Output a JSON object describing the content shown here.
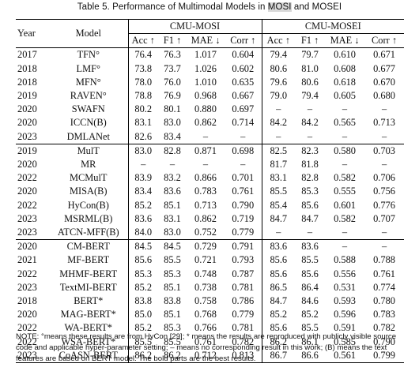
{
  "caption": {
    "prefix": "Table 5.  Performance of Multimodal Models in ",
    "mosi": "MOSI",
    "suffix": " and MOSEI"
  },
  "header": {
    "year": "Year",
    "model": "Model",
    "group1": "CMU-MOSI",
    "group2": "CMU-MOSEI",
    "metrics": [
      "Acc ↑",
      "F1 ↑",
      "MAE ↓",
      "Corr ↑",
      "Acc ↑",
      "F1 ↑",
      "MAE ↓",
      "Corr ↑"
    ]
  },
  "groups": [
    {
      "rows": [
        {
          "year": "2017",
          "model": "TFN°",
          "v": [
            "76.4",
            "76.3",
            "1.017",
            "0.604",
            "79.4",
            "79.7",
            "0.610",
            "0.671"
          ]
        },
        {
          "year": "2018",
          "model": "LMF°",
          "v": [
            "73.8",
            "73.7",
            "1.026",
            "0.602",
            "80.6",
            "81.0",
            "0.608",
            "0.677"
          ]
        },
        {
          "year": "2018",
          "model": "MFN°",
          "v": [
            "78.0",
            "76.0",
            "1.010",
            "0.635",
            "79.6",
            "80.6",
            "0.618",
            "0.670"
          ]
        },
        {
          "year": "2019",
          "model": "RAVEN°",
          "v": [
            "78.8",
            "76.9",
            "0.968",
            "0.667",
            "79.0",
            "79.4",
            "0.605",
            "0.680"
          ]
        },
        {
          "year": "2020",
          "model": "SWAFN",
          "v": [
            "80.2",
            "80.1",
            "0.880",
            "0.697",
            "–",
            "–",
            "–",
            "–"
          ]
        },
        {
          "year": "2020",
          "model": "ICCN(B)",
          "v": [
            "83.1",
            "83.0",
            "0.862",
            "0.714",
            "84.2",
            "84.2",
            "0.565",
            "0.713"
          ]
        },
        {
          "year": "2023",
          "model": "DMLANet",
          "v": [
            "82.6",
            "83.4",
            "–",
            "–",
            "–",
            "–",
            "–",
            "–"
          ]
        }
      ]
    },
    {
      "rows": [
        {
          "year": "2019",
          "model": "MulT",
          "v": [
            "83.0",
            "82.8",
            "0.871",
            "0.698",
            "82.5",
            "82.3",
            "0.580",
            "0.703"
          ]
        },
        {
          "year": "2020",
          "model": "MR",
          "v": [
            "–",
            "–",
            "–",
            "–",
            "81.7",
            "81.8",
            "–",
            "–"
          ]
        },
        {
          "year": "2022",
          "model": "MCMulT",
          "v": [
            "83.9",
            "83.2",
            "0.866",
            "0.701",
            "83.1",
            "82.8",
            "0.582",
            "0.706"
          ]
        },
        {
          "year": "2020",
          "model": "MISA(B)",
          "v": [
            "83.4",
            "83.6",
            "0.783",
            "0.761",
            "85.5",
            "85.3",
            "0.555",
            "0.756"
          ]
        },
        {
          "year": "2022",
          "model": "HyCon(B)",
          "v": [
            "85.2",
            "85.1",
            "0.713",
            "0.790",
            "85.4",
            "85.6",
            "0.601",
            "0.776"
          ]
        },
        {
          "year": "2023",
          "model": "MSRML(B)",
          "v": [
            "83.6",
            "83.1",
            "0.862",
            "0.719",
            "84.7",
            "84.7",
            "0.582",
            "0.707"
          ]
        },
        {
          "year": "2023",
          "model": "ATCN-MFF(B)",
          "v": [
            "84.0",
            "83.0",
            "0.752",
            "0.779",
            "–",
            "–",
            "–",
            "–"
          ]
        }
      ]
    },
    {
      "rows": [
        {
          "year": "2020",
          "model": "CM-BERT",
          "v": [
            "84.5",
            "84.5",
            "0.729",
            "0.791",
            "83.6",
            "83.6",
            "–",
            "–"
          ]
        },
        {
          "year": "2021",
          "model": "MF-BERT",
          "v": [
            "85.6",
            "85.5",
            "0.721",
            "0.793",
            "85.6",
            "85.5",
            "0.588",
            "0.788"
          ]
        },
        {
          "year": "2022",
          "model": "MHMF-BERT",
          "v": [
            "85.3",
            "85.3",
            "0.748",
            "0.787",
            "85.6",
            "85.6",
            "0.556",
            "0.761"
          ]
        },
        {
          "year": "2023",
          "model": "TextMI-BERT",
          "v": [
            "85.2",
            "85.1",
            "0.738",
            "0.781",
            "86.5",
            "86.4",
            "0.531",
            "0.774"
          ]
        },
        {
          "year": "2018",
          "model": "BERT*",
          "v": [
            "83.8",
            "83.8",
            "0.758",
            "0.786",
            "84.7",
            "84.6",
            "0.593",
            "0.780"
          ]
        },
        {
          "year": "2020",
          "model": "MAG-BERT*",
          "v": [
            "85.0",
            "85.1",
            "0.768",
            "0.779",
            "85.2",
            "85.2",
            "0.596",
            "0.783"
          ]
        },
        {
          "year": "2022",
          "model": "WA-BERT*",
          "v": [
            "85.2",
            "85.3",
            "0.766",
            "0.781",
            "85.6",
            "85.5",
            "0.591",
            "0.782"
          ]
        },
        {
          "year": "2022",
          "model": "WSA-BERT*",
          "v": [
            "85.5",
            "85.5",
            "0.761",
            "0.782",
            "86.2",
            "86.1",
            "0.585",
            "0.790"
          ]
        },
        {
          "year": "2023",
          "model": "CoASN-BERT",
          "v": [
            "86.2",
            "86.2",
            "0.712",
            "0.813",
            "86.7",
            "86.6",
            "0.561",
            "0.799"
          ]
        }
      ]
    }
  ],
  "note": "NOTE: °means these results are from HyCon [29]; * means the results are reproduced with publicly visible source code and applicable hyper-parameter setting; – means no corresponding result in this work; (B) means the text features are based on BERT model. The bold parts are the best results."
}
